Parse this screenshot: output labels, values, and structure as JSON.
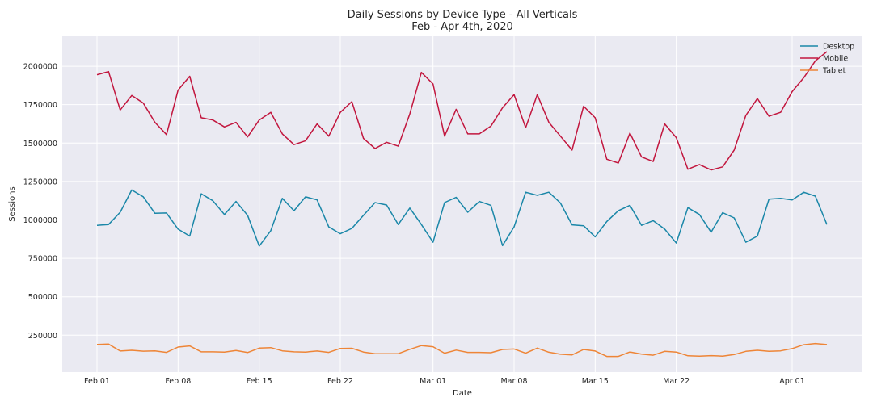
{
  "chart_data": {
    "type": "line",
    "title": "Daily Sessions by Device Type - All Verticals",
    "subtitle": "Feb - Apr 4th, 2020",
    "xlabel": "Date",
    "ylabel": "Sessions",
    "x_start": "2020-02-01",
    "x_end": "2020-04-04",
    "xlim": [
      "2020-01-29",
      "2020-04-07"
    ],
    "ylim": [
      10000,
      2200000
    ],
    "x_ticks": [
      {
        "date": "2020-02-01",
        "label": "Feb 01"
      },
      {
        "date": "2020-02-08",
        "label": "Feb 08"
      },
      {
        "date": "2020-02-15",
        "label": "Feb 15"
      },
      {
        "date": "2020-02-22",
        "label": "Feb 22"
      },
      {
        "date": "2020-03-01",
        "label": "Mar 01"
      },
      {
        "date": "2020-03-08",
        "label": "Mar 08"
      },
      {
        "date": "2020-03-15",
        "label": "Mar 15"
      },
      {
        "date": "2020-03-22",
        "label": "Mar 22"
      },
      {
        "date": "2020-04-01",
        "label": "Apr 01"
      }
    ],
    "y_ticks": [
      250000,
      500000,
      750000,
      1000000,
      1250000,
      1500000,
      1750000,
      2000000
    ],
    "grid": true,
    "legend_position": "top-right",
    "background": "#EAEAF2",
    "series": [
      {
        "name": "Desktop",
        "color": "#1A87A8",
        "values": [
          965000,
          970000,
          1050000,
          1195000,
          1150000,
          1043000,
          1045000,
          940000,
          895000,
          1170000,
          1125000,
          1035000,
          1120000,
          1030000,
          830000,
          930000,
          1140000,
          1060000,
          1150000,
          1130000,
          955000,
          910000,
          945000,
          1030000,
          1113000,
          1097000,
          970000,
          1077000,
          970000,
          855000,
          1113000,
          1147000,
          1050000,
          1120000,
          1095000,
          833000,
          955000,
          1180000,
          1160000,
          1180000,
          1110000,
          968000,
          962000,
          890000,
          990000,
          1060000,
          1095000,
          965000,
          995000,
          940000,
          850000,
          1080000,
          1035000,
          920000,
          1047000,
          1013000,
          855000,
          895000,
          1135000,
          1140000,
          1130000,
          1180000,
          1155000,
          970000
        ]
      },
      {
        "name": "Mobile",
        "color": "#C2163E",
        "values": [
          1945000,
          1965000,
          1715000,
          1810000,
          1760000,
          1635000,
          1555000,
          1845000,
          1935000,
          1665000,
          1650000,
          1605000,
          1635000,
          1540000,
          1650000,
          1700000,
          1560000,
          1490000,
          1515000,
          1625000,
          1545000,
          1700000,
          1770000,
          1530000,
          1465000,
          1505000,
          1480000,
          1690000,
          1960000,
          1885000,
          1545000,
          1720000,
          1560000,
          1560000,
          1610000,
          1730000,
          1815000,
          1600000,
          1815000,
          1635000,
          1545000,
          1455000,
          1740000,
          1665000,
          1395000,
          1370000,
          1565000,
          1410000,
          1380000,
          1625000,
          1535000,
          1330000,
          1360000,
          1325000,
          1345000,
          1455000,
          1680000,
          1790000,
          1675000,
          1700000,
          1835000,
          1925000,
          2035000,
          2095000
        ]
      },
      {
        "name": "Tablet",
        "color": "#EE8537",
        "values": [
          190000,
          192000,
          147000,
          152000,
          146000,
          148000,
          138000,
          173000,
          180000,
          142000,
          142000,
          140000,
          150000,
          137000,
          166000,
          169000,
          148000,
          142000,
          140000,
          147000,
          138000,
          164000,
          165000,
          140000,
          129000,
          130000,
          130000,
          158000,
          182000,
          175000,
          133000,
          153000,
          138000,
          138000,
          136000,
          157000,
          160000,
          133000,
          166000,
          139000,
          126000,
          122000,
          157000,
          147000,
          112000,
          112000,
          141000,
          127000,
          120000,
          145000,
          140000,
          116000,
          114000,
          117000,
          114000,
          124000,
          145000,
          152000,
          145000,
          148000,
          163000,
          188000,
          196000,
          189000
        ]
      }
    ]
  }
}
